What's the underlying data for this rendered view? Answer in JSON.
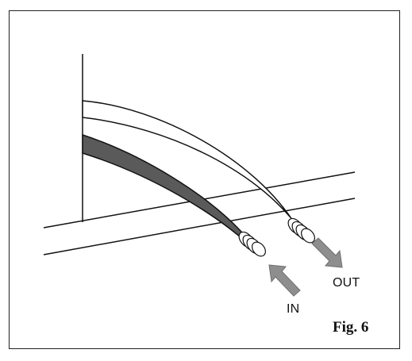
{
  "labels": {
    "inlet": "IN",
    "outlet": "OUT",
    "figure": "Fig. 6"
  },
  "colors": {
    "line": "#111111",
    "dark_hose": "#5a5a5a",
    "arrow": "#8e8e8e"
  }
}
